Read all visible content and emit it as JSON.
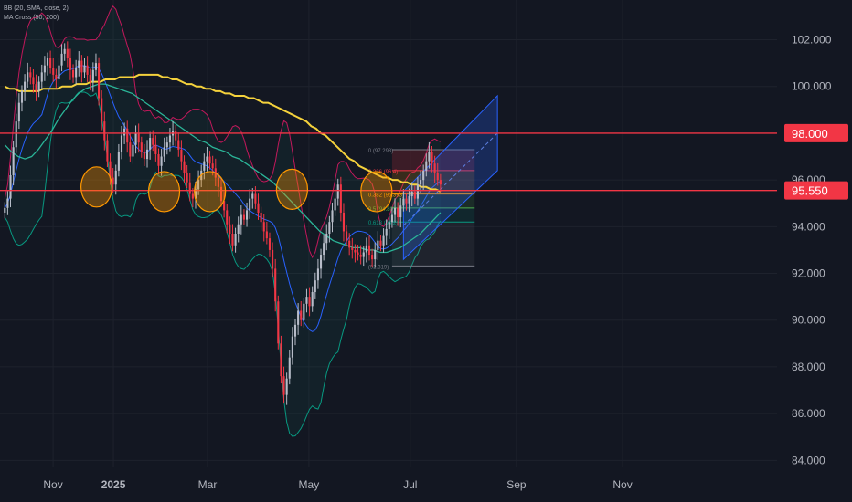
{
  "indicators": [
    {
      "label": "BB (20, SMA, close, 2)"
    },
    {
      "label": "MA Cross (50, 200)"
    }
  ],
  "chart_data": {
    "type": "candlestick",
    "y_ticks": [
      "102.000",
      "100.000",
      "96.000",
      "94.000",
      "92.000",
      "90.000",
      "88.000",
      "86.000",
      "84.000"
    ],
    "y_tick_values": [
      102,
      100,
      96,
      94,
      92,
      90,
      88,
      86,
      84
    ],
    "ylim": [
      83.7,
      103.7
    ],
    "x_ticks": [
      {
        "label": "Nov",
        "index": 20
      },
      {
        "label": "2025",
        "index": 45,
        "bold": true
      },
      {
        "label": "Mar",
        "index": 84
      },
      {
        "label": "May",
        "index": 126
      },
      {
        "label": "Jul",
        "index": 168
      },
      {
        "label": "Sep",
        "index": 212
      },
      {
        "label": "Nov",
        "index": 256
      }
    ],
    "bar_count": 320,
    "x_range": [
      -2,
      320
    ],
    "horizontal_levels": [
      {
        "value": 98.0,
        "label": "98.000",
        "color": "#f23645"
      },
      {
        "value": 95.55,
        "label": "95.550",
        "color": "#f23645"
      }
    ],
    "close": [
      94.8,
      95.2,
      96.2,
      97.4,
      98.5,
      99.3,
      99.8,
      100.2,
      100.6,
      100.4,
      100.1,
      99.8,
      100.2,
      100.6,
      100.9,
      101.2,
      100.8,
      100.5,
      100.3,
      100.9,
      101.4,
      101.6,
      101.2,
      100.7,
      100.4,
      100.8,
      101.1,
      100.6,
      100.9,
      100.5,
      100.2,
      100.7,
      101.0,
      99.5,
      98.5,
      97.7,
      96.8,
      96.1,
      95.8,
      96.4,
      97.2,
      97.9,
      98.2,
      97.6,
      97.0,
      97.5,
      98.0,
      97.6,
      97.2,
      96.9,
      97.3,
      97.8,
      97.5,
      97.1,
      96.6,
      97.0,
      97.4,
      97.6,
      97.9,
      98.1,
      97.7,
      97.3,
      96.8,
      96.3,
      95.9,
      95.4,
      95.2,
      95.6,
      96.0,
      96.4,
      96.8,
      97.0,
      96.7,
      96.5,
      96.1,
      95.7,
      95.1,
      94.7,
      94.1,
      93.7,
      93.2,
      93.7,
      94.1,
      94.5,
      94.3,
      94.7,
      95.2,
      95.4,
      95.0,
      94.6,
      94.2,
      93.8,
      93.5,
      93.0,
      92.2,
      90.8,
      89.0,
      87.6,
      86.8,
      87.5,
      88.4,
      89.3,
      89.8,
      90.4,
      90.0,
      90.7,
      91.0,
      90.6,
      91.2,
      91.7,
      92.2,
      92.8,
      93.3,
      93.7,
      94.2,
      94.7,
      95.2,
      95.8,
      94.6,
      93.8,
      93.4,
      93.1,
      93.0,
      92.9,
      92.8,
      92.7,
      92.9,
      93.2,
      92.8,
      92.6,
      93.0,
      93.4,
      93.2,
      93.6,
      93.9,
      94.2,
      94.5,
      94.8,
      94.4,
      94.9,
      95.2,
      95.0,
      95.3,
      95.5,
      95.2,
      95.8,
      96.0,
      96.4,
      96.8,
      97.2,
      96.7,
      96.3,
      96.0,
      95.8
    ],
    "ma200": [
      100.0,
      99.9,
      99.9,
      99.8,
      99.8,
      99.8,
      99.8,
      99.8,
      99.9,
      99.9,
      99.9,
      99.9,
      100.0,
      100.0,
      100.0,
      100.1,
      100.1,
      100.1,
      100.2,
      100.2,
      100.2,
      100.3,
      100.3,
      100.3,
      100.4,
      100.4,
      100.4,
      100.4,
      100.5,
      100.5,
      100.5,
      100.5,
      100.5,
      100.4,
      100.4,
      100.3,
      100.3,
      100.2,
      100.1,
      100.1,
      100.0,
      100.0,
      99.9,
      99.9,
      99.8,
      99.8,
      99.7,
      99.7,
      99.6,
      99.6,
      99.6,
      99.5,
      99.5,
      99.4,
      99.3,
      99.3,
      99.2,
      99.1,
      99.0,
      98.9,
      98.8,
      98.7,
      98.6,
      98.5,
      98.3,
      98.2,
      98.0,
      97.9,
      97.7,
      97.5,
      97.3,
      97.1,
      96.9,
      96.8,
      96.6,
      96.5,
      96.4,
      96.3,
      96.2,
      96.1,
      96.1,
      96.0,
      96.0,
      95.9,
      95.9,
      95.8,
      95.8,
      95.7,
      95.7,
      95.6,
      95.6,
      95.5
    ],
    "ma50": [
      97.5,
      97.2,
      97.0,
      96.9,
      97.0,
      97.3,
      97.7,
      98.1,
      98.6,
      99.0,
      99.4,
      99.7,
      99.9,
      100.0,
      100.1,
      100.1,
      100.0,
      99.9,
      99.8,
      99.7,
      99.5,
      99.3,
      99.1,
      98.9,
      98.7,
      98.5,
      98.3,
      98.1,
      97.9,
      97.7,
      97.6,
      97.4,
      97.3,
      97.2,
      97.0,
      96.9,
      96.7,
      96.5,
      96.3,
      96.1,
      95.9,
      95.6,
      95.3,
      95.0,
      94.7,
      94.4,
      94.1,
      93.8,
      93.6,
      93.4,
      93.3,
      93.2,
      93.1,
      93.1,
      93.0,
      93.0,
      92.9,
      92.9,
      93.0,
      93.1,
      93.3,
      93.5,
      93.7,
      94.0,
      94.3,
      94.6
    ],
    "fib_levels": [
      {
        "label": "0 (97.293)",
        "value": 97.293
      },
      {
        "label": "0.236 (96.4)",
        "value": 96.4
      },
      {
        "label": "0.382 (95.393)",
        "value": 95.393
      },
      {
        "label": "0.5 (94.80)",
        "value": 94.8
      },
      {
        "label": "0.618 (94.2)",
        "value": 94.2
      },
      {
        "label": "(92.319)",
        "value": 92.319
      }
    ],
    "circles": [
      {
        "index": 38,
        "value": 95.7
      },
      {
        "index": 66,
        "value": 95.5
      },
      {
        "index": 85,
        "value": 95.5
      },
      {
        "index": 119,
        "value": 95.6
      },
      {
        "index": 154,
        "value": 95.5
      }
    ]
  }
}
